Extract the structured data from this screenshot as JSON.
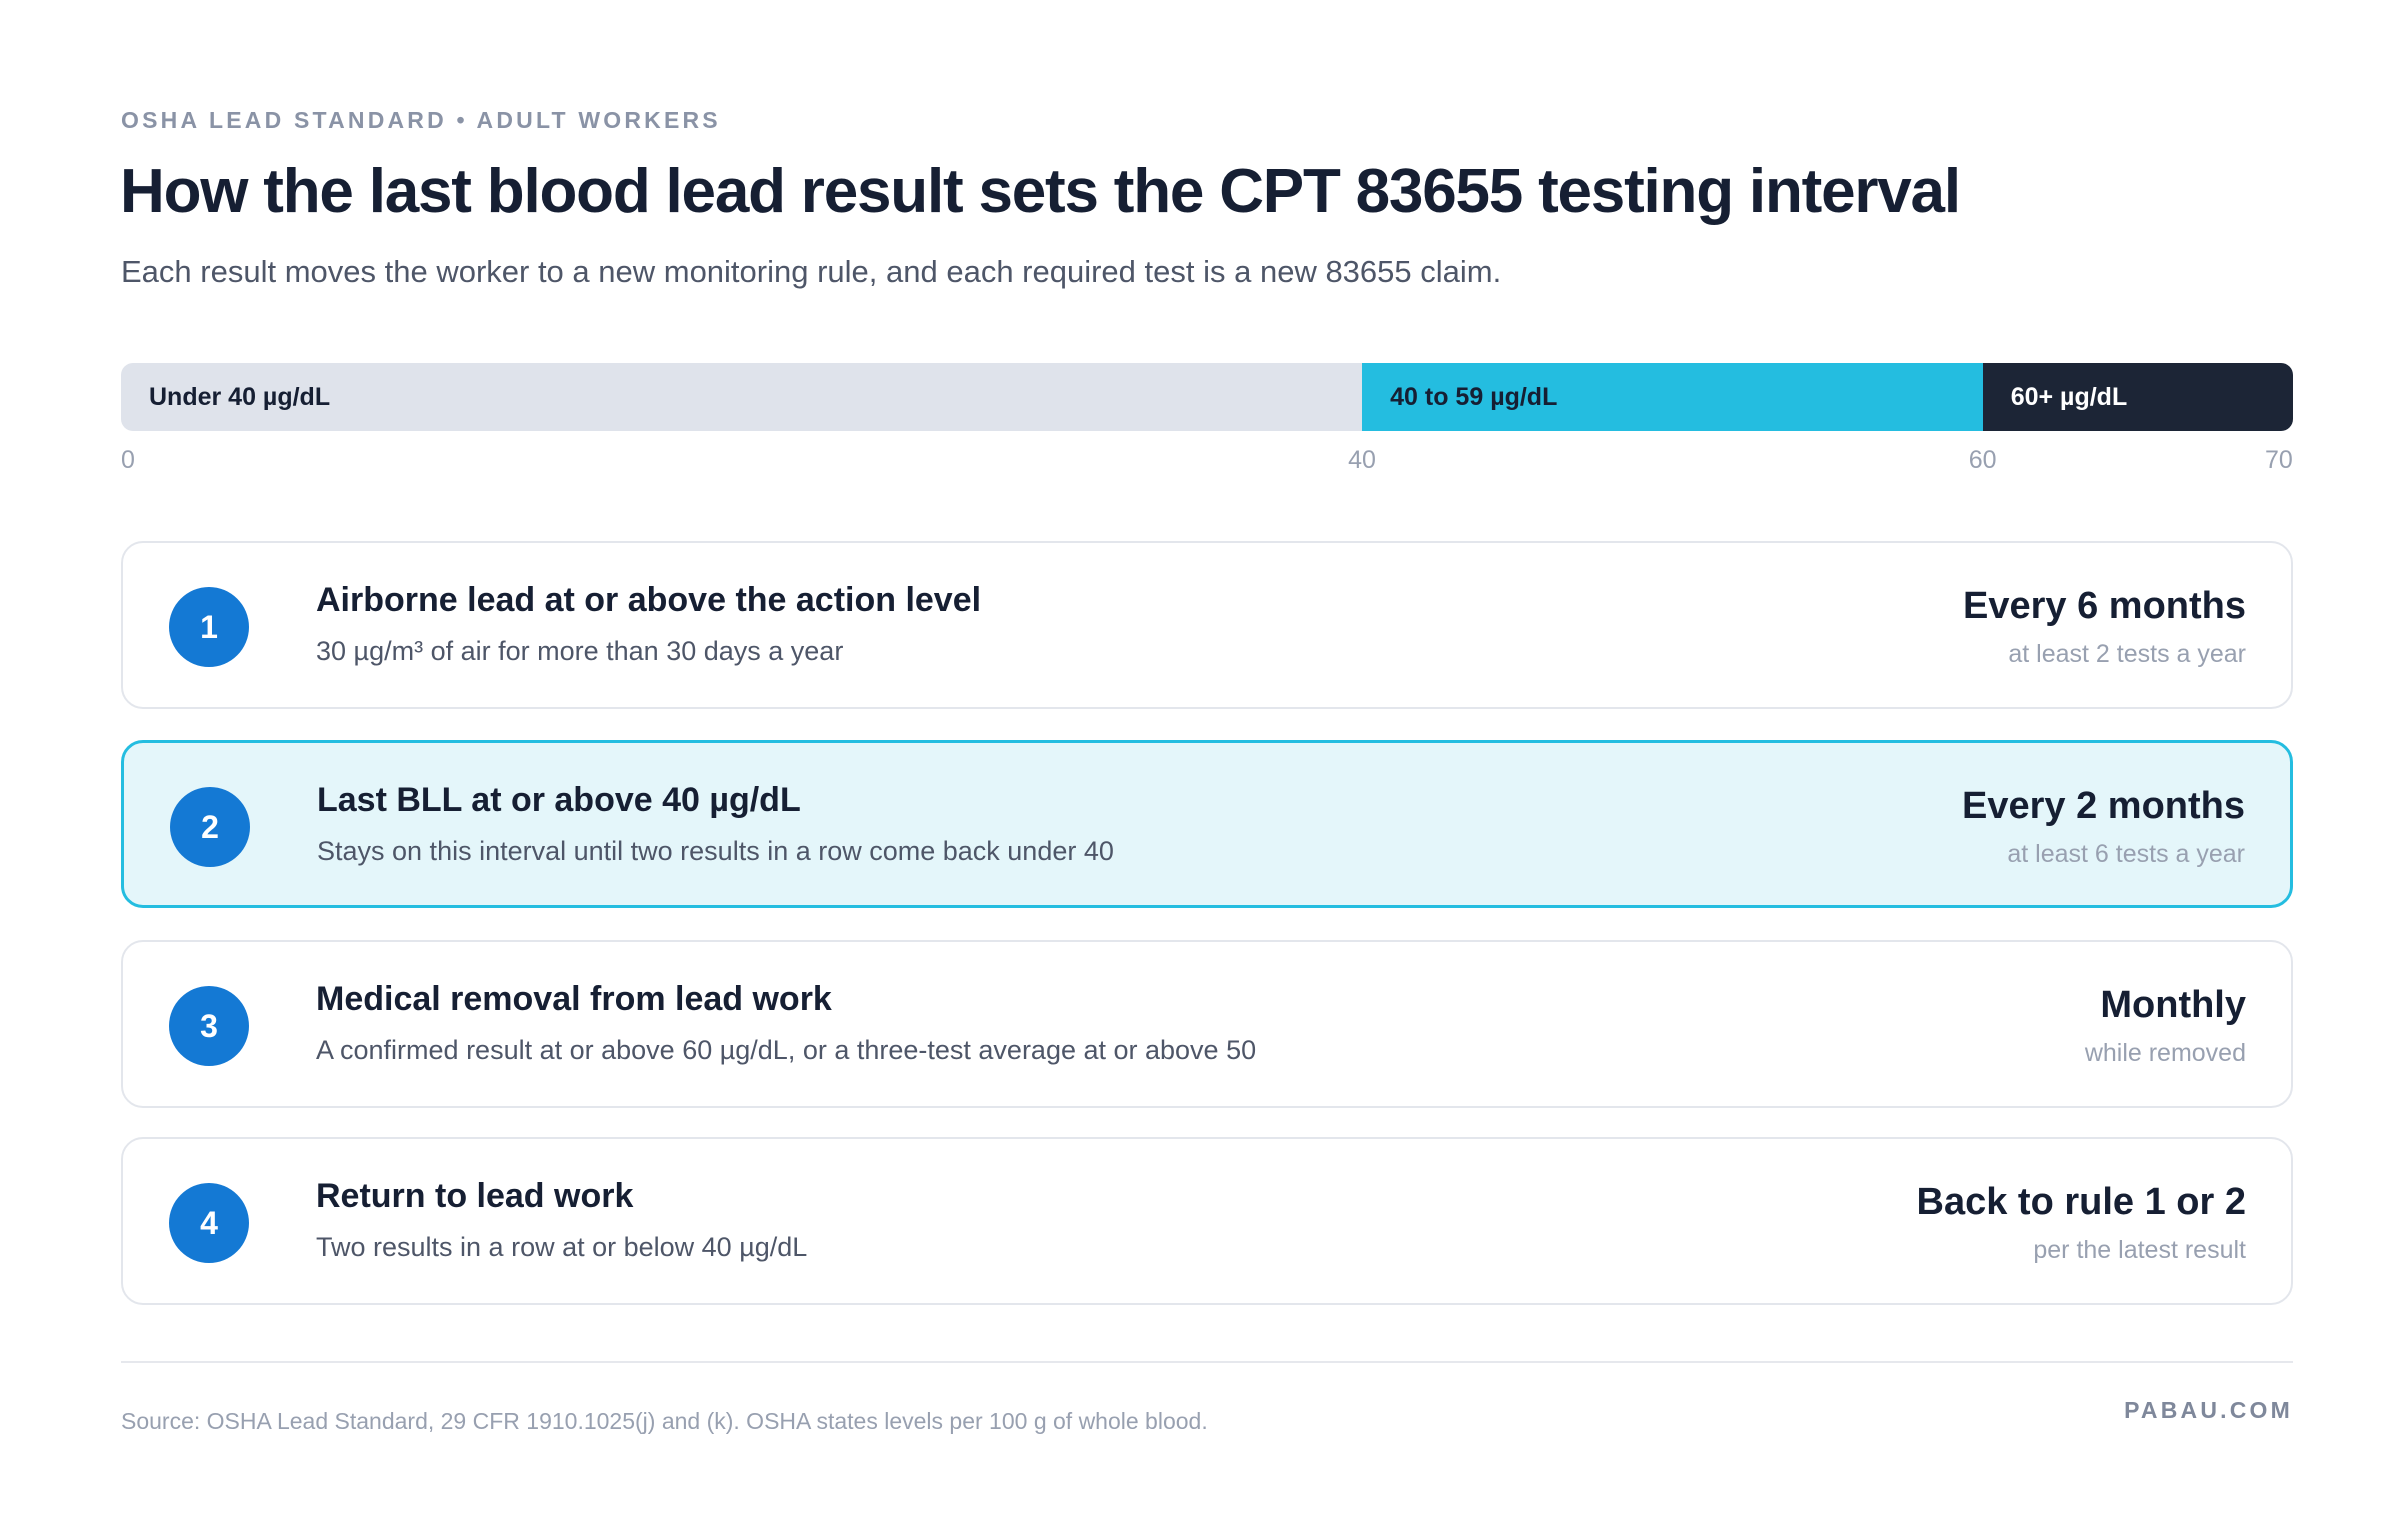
{
  "header": {
    "eyebrow": "OSHA LEAD STANDARD • ADULT WORKERS",
    "title": "How the last blood lead result sets the CPT 83655 testing interval",
    "subtitle": "Each result moves the worker to a new monitoring rule, and each required test is a new 83655 claim."
  },
  "range_scale": {
    "min": 0,
    "max": 70,
    "bands": [
      {
        "label": "Under 40 µg/dL",
        "from": 0,
        "to": 40,
        "color": "#dfe3eb",
        "text_color": "#161f33"
      },
      {
        "label": "40 to 59 µg/dL",
        "from": 40,
        "to": 60,
        "color": "#24bde0",
        "text_color": "#161f33"
      },
      {
        "label": "60+ µg/dL",
        "from": 60,
        "to": 70,
        "color": "#1c2536",
        "text_color": "#ffffff"
      }
    ],
    "ticks": [
      "0",
      "40",
      "60",
      "70"
    ]
  },
  "rules": [
    {
      "number": "1",
      "title": "Airborne lead at or above the action level",
      "description": "30 µg/m³ of air for more than 30 days a year",
      "interval": "Every 6 months",
      "frequency": "at least 2 tests a year",
      "highlighted": false
    },
    {
      "number": "2",
      "title": "Last BLL at or above 40 µg/dL",
      "description": "Stays on this interval until two results in a row come back under 40",
      "interval": "Every 2 months",
      "frequency": "at least 6 tests a year",
      "highlighted": true
    },
    {
      "number": "3",
      "title": "Medical removal from lead work",
      "description": "A confirmed result at or above 60 µg/dL, or a three-test average at or above 50",
      "interval": "Monthly",
      "frequency": "while removed",
      "highlighted": false
    },
    {
      "number": "4",
      "title": "Return to lead work",
      "description": "Two results in a row at or below 40 µg/dL",
      "interval": "Back to rule 1 or 2",
      "frequency": "per the latest result",
      "highlighted": false
    }
  ],
  "footer": {
    "source": "Source: OSHA Lead Standard, 29 CFR 1910.1025(j) and (k). OSHA states levels per 100 g of whole blood.",
    "brand": "PABAU.COM"
  },
  "colors": {
    "accent_blue": "#1479d4",
    "accent_cyan": "#24bde0",
    "highlight_bg": "#e4f6fa"
  }
}
